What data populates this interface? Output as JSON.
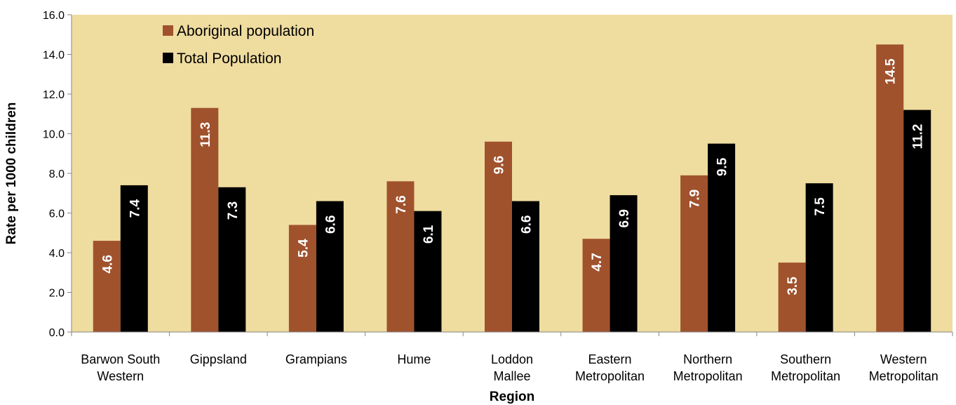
{
  "chart_data": {
    "type": "bar",
    "xlabel": "Region",
    "ylabel": "Rate per 1000 children",
    "ylim": [
      0,
      16
    ],
    "yticks": [
      "0.0",
      "2.0",
      "4.0",
      "6.0",
      "8.0",
      "10.0",
      "12.0",
      "14.0",
      "16.0"
    ],
    "categories": [
      [
        "Barwon South",
        "Western"
      ],
      [
        "Gippsland"
      ],
      [
        "Grampians"
      ],
      [
        "Hume"
      ],
      [
        "Loddon",
        "Mallee"
      ],
      [
        "Eastern",
        "Metropolitan"
      ],
      [
        "Northern",
        "Metropolitan"
      ],
      [
        "Southern",
        "Metropolitan"
      ],
      [
        "Western",
        "Metropolitan"
      ]
    ],
    "series": [
      {
        "name": "Aboriginal population",
        "color": "#a0522d",
        "values": [
          4.6,
          11.3,
          5.4,
          7.6,
          9.6,
          4.7,
          7.9,
          3.5,
          14.5
        ],
        "labels": [
          "4.6",
          "11.3",
          "5.4",
          "7.6",
          "9.6",
          "4.7",
          "7.9",
          "3.5",
          "14.5"
        ]
      },
      {
        "name": "Total Population",
        "color": "#000000",
        "values": [
          7.4,
          7.3,
          6.6,
          6.1,
          6.6,
          6.9,
          9.5,
          7.5,
          11.2
        ],
        "labels": [
          "7.4",
          "7.3",
          "6.6",
          "6.1",
          "6.6",
          "6.9",
          "9.5",
          "7.5",
          "11.2"
        ]
      }
    ],
    "plot_background": "#efdc9f",
    "legend_position": "top-left",
    "grid": false
  }
}
